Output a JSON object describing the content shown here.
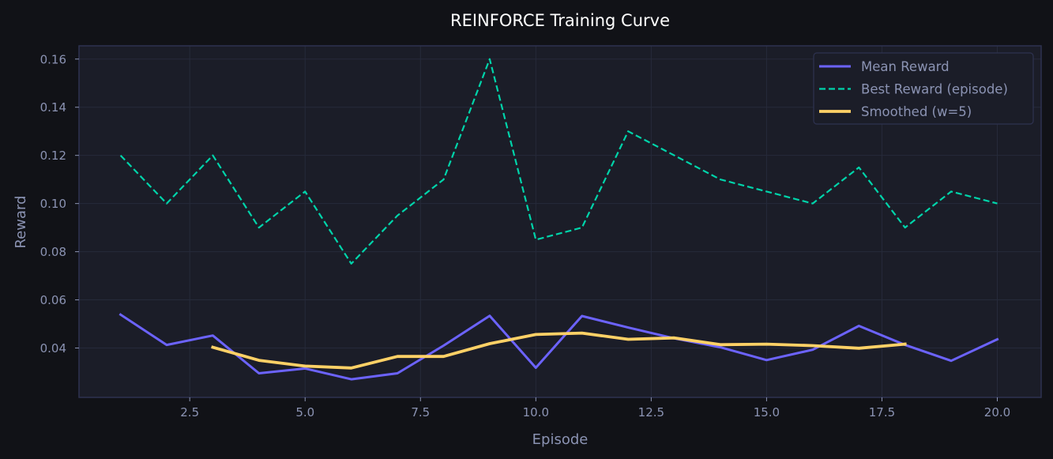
{
  "chart_data": {
    "type": "line",
    "title": "REINFORCE Training Curve",
    "xlabel": "Episode",
    "ylabel": "Reward",
    "xlim": [
      0.1,
      20.95
    ],
    "ylim": [
      0.0195,
      0.1655
    ],
    "xticks": [
      2.5,
      5.0,
      7.5,
      10.0,
      12.5,
      15.0,
      17.5,
      20.0
    ],
    "xtick_labels": [
      "2.5",
      "5.0",
      "7.5",
      "10.0",
      "12.5",
      "15.0",
      "17.5",
      "20.0"
    ],
    "yticks": [
      0.04,
      0.06,
      0.08,
      0.1,
      0.12,
      0.14,
      0.16
    ],
    "ytick_labels": [
      "0.04",
      "0.06",
      "0.08",
      "0.10",
      "0.12",
      "0.14",
      "0.16"
    ],
    "grid": true,
    "legend_position": "upper right",
    "series": [
      {
        "name": "Mean Reward",
        "color": "#6c63ff",
        "style": "solid",
        "width": 3,
        "x": [
          1,
          2,
          3,
          4,
          5,
          6,
          7,
          8,
          9,
          10,
          11,
          12,
          13,
          14,
          15,
          16,
          17,
          18,
          19,
          20
        ],
        "values": [
          0.0539,
          0.0413,
          0.0452,
          0.0295,
          0.0315,
          0.027,
          0.0295,
          0.041,
          0.0534,
          0.0318,
          0.0533,
          0.0485,
          0.044,
          0.0403,
          0.035,
          0.0393,
          0.0492,
          0.0413,
          0.0347,
          0.0436
        ]
      },
      {
        "name": "Best Reward (episode)",
        "color": "#00d4aa",
        "style": "dashed",
        "width": 2.2,
        "x": [
          1,
          2,
          3,
          4,
          5,
          6,
          7,
          8,
          9,
          10,
          11,
          12,
          13,
          14,
          15,
          16,
          17,
          18,
          19,
          20
        ],
        "values": [
          0.12,
          0.1,
          0.12,
          0.09,
          0.105,
          0.075,
          0.095,
          0.11,
          0.16,
          0.085,
          0.09,
          0.13,
          0.12,
          0.11,
          0.105,
          0.1,
          0.115,
          0.09,
          0.105,
          0.1
        ]
      },
      {
        "name": "Smoothed (w=5)",
        "color": "#ffd166",
        "style": "solid",
        "width": 3.8,
        "x": [
          3,
          4,
          5,
          6,
          7,
          8,
          9,
          10,
          11,
          12,
          13,
          14,
          15,
          16,
          17,
          18
        ],
        "values": [
          0.0403,
          0.0349,
          0.0325,
          0.0317,
          0.0365,
          0.0365,
          0.0418,
          0.0456,
          0.0462,
          0.0436,
          0.0442,
          0.0414,
          0.0416,
          0.041,
          0.0399,
          0.0416
        ]
      }
    ]
  },
  "colors": {
    "page_bg": "#111217",
    "plot_bg": "#1b1d28",
    "frame": "#2e3250",
    "grid": "#262a3a",
    "text": "#8b93b3",
    "title": "#ffffff"
  }
}
